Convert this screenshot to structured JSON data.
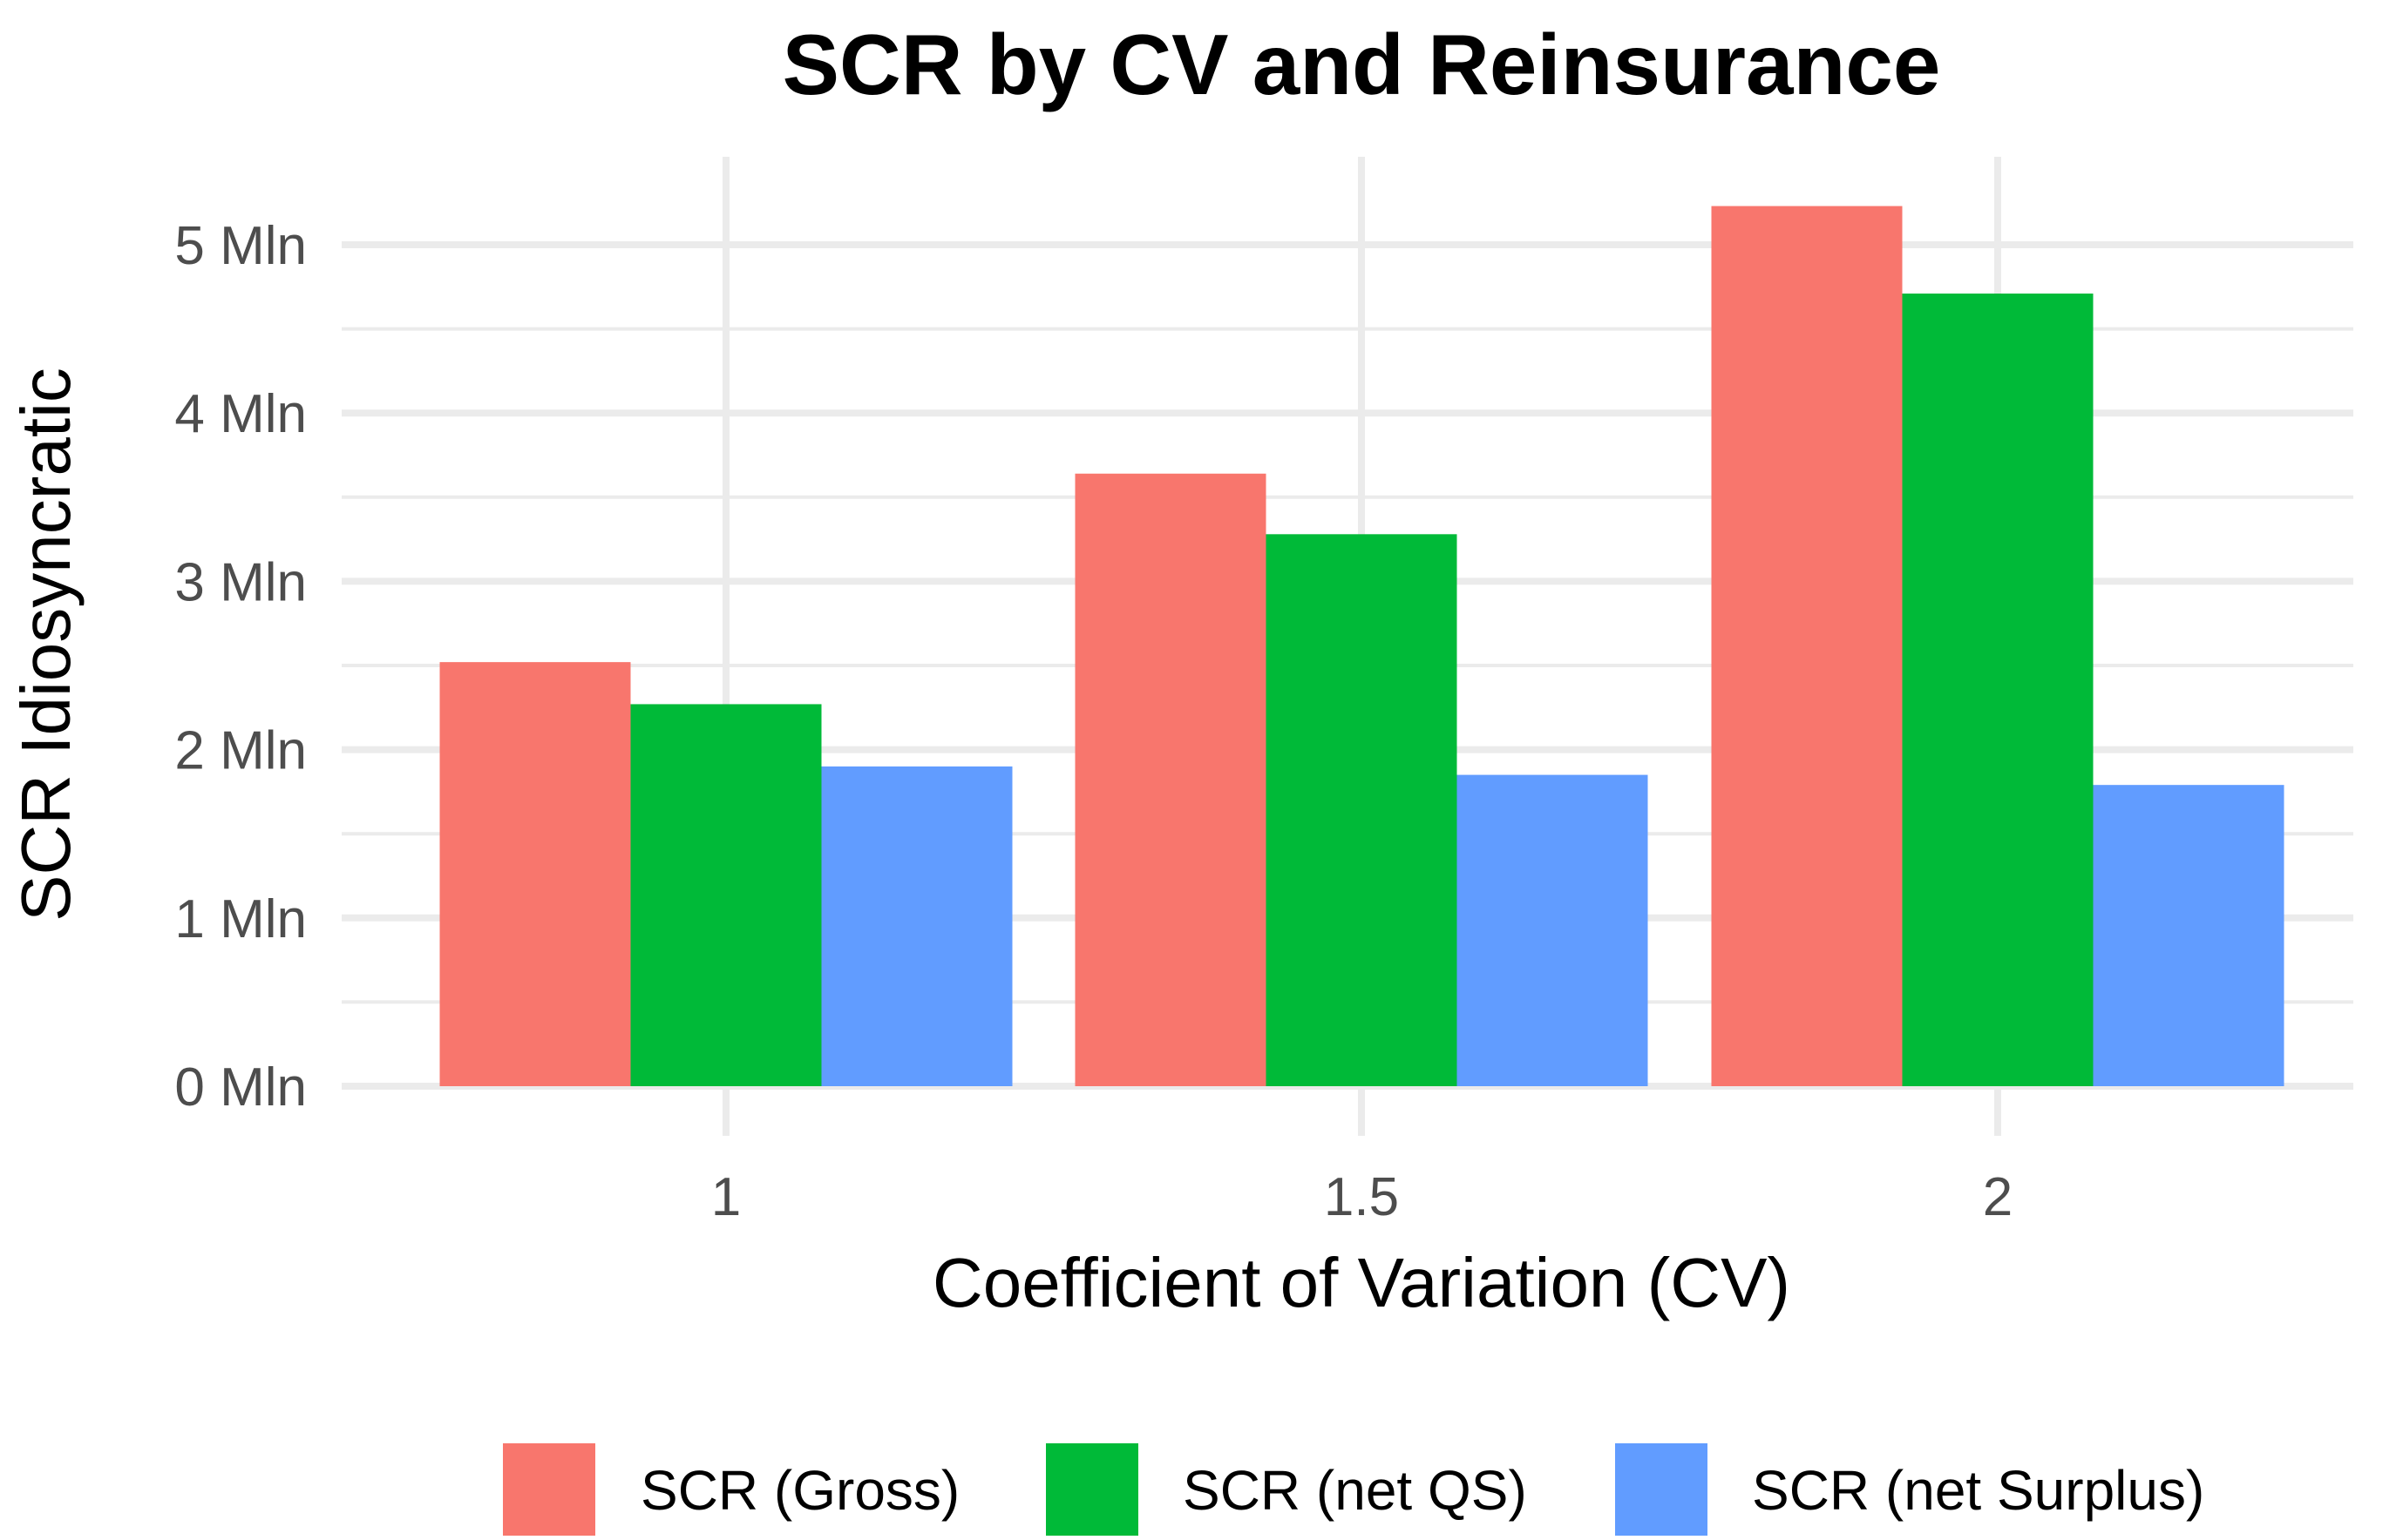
{
  "chart_data": {
    "type": "bar",
    "title": "SCR by CV and Reinsurance",
    "xlabel": "Coefficient of Variation (CV)",
    "ylabel": "SCR Idiosyncratic",
    "categories": [
      "1",
      "1.5",
      "2"
    ],
    "series": [
      {
        "name": "SCR (Gross)",
        "color": "#F8766D",
        "values": [
          2.52,
          3.64,
          5.23
        ]
      },
      {
        "name": "SCR (net QS)",
        "color": "#00BA38",
        "values": [
          2.27,
          3.28,
          4.71
        ]
      },
      {
        "name": "SCR (net Surplus)",
        "color": "#619CFF",
        "values": [
          1.9,
          1.85,
          1.79
        ]
      }
    ],
    "ylim": [
      0,
      5.4
    ],
    "yticks": [
      0,
      1,
      2,
      3,
      4,
      5
    ],
    "ytick_labels": [
      "0 Mln",
      "1 Mln",
      "2 Mln",
      "3 Mln",
      "4 Mln",
      "5 Mln"
    ],
    "grid": true,
    "legend_position": "bottom"
  }
}
